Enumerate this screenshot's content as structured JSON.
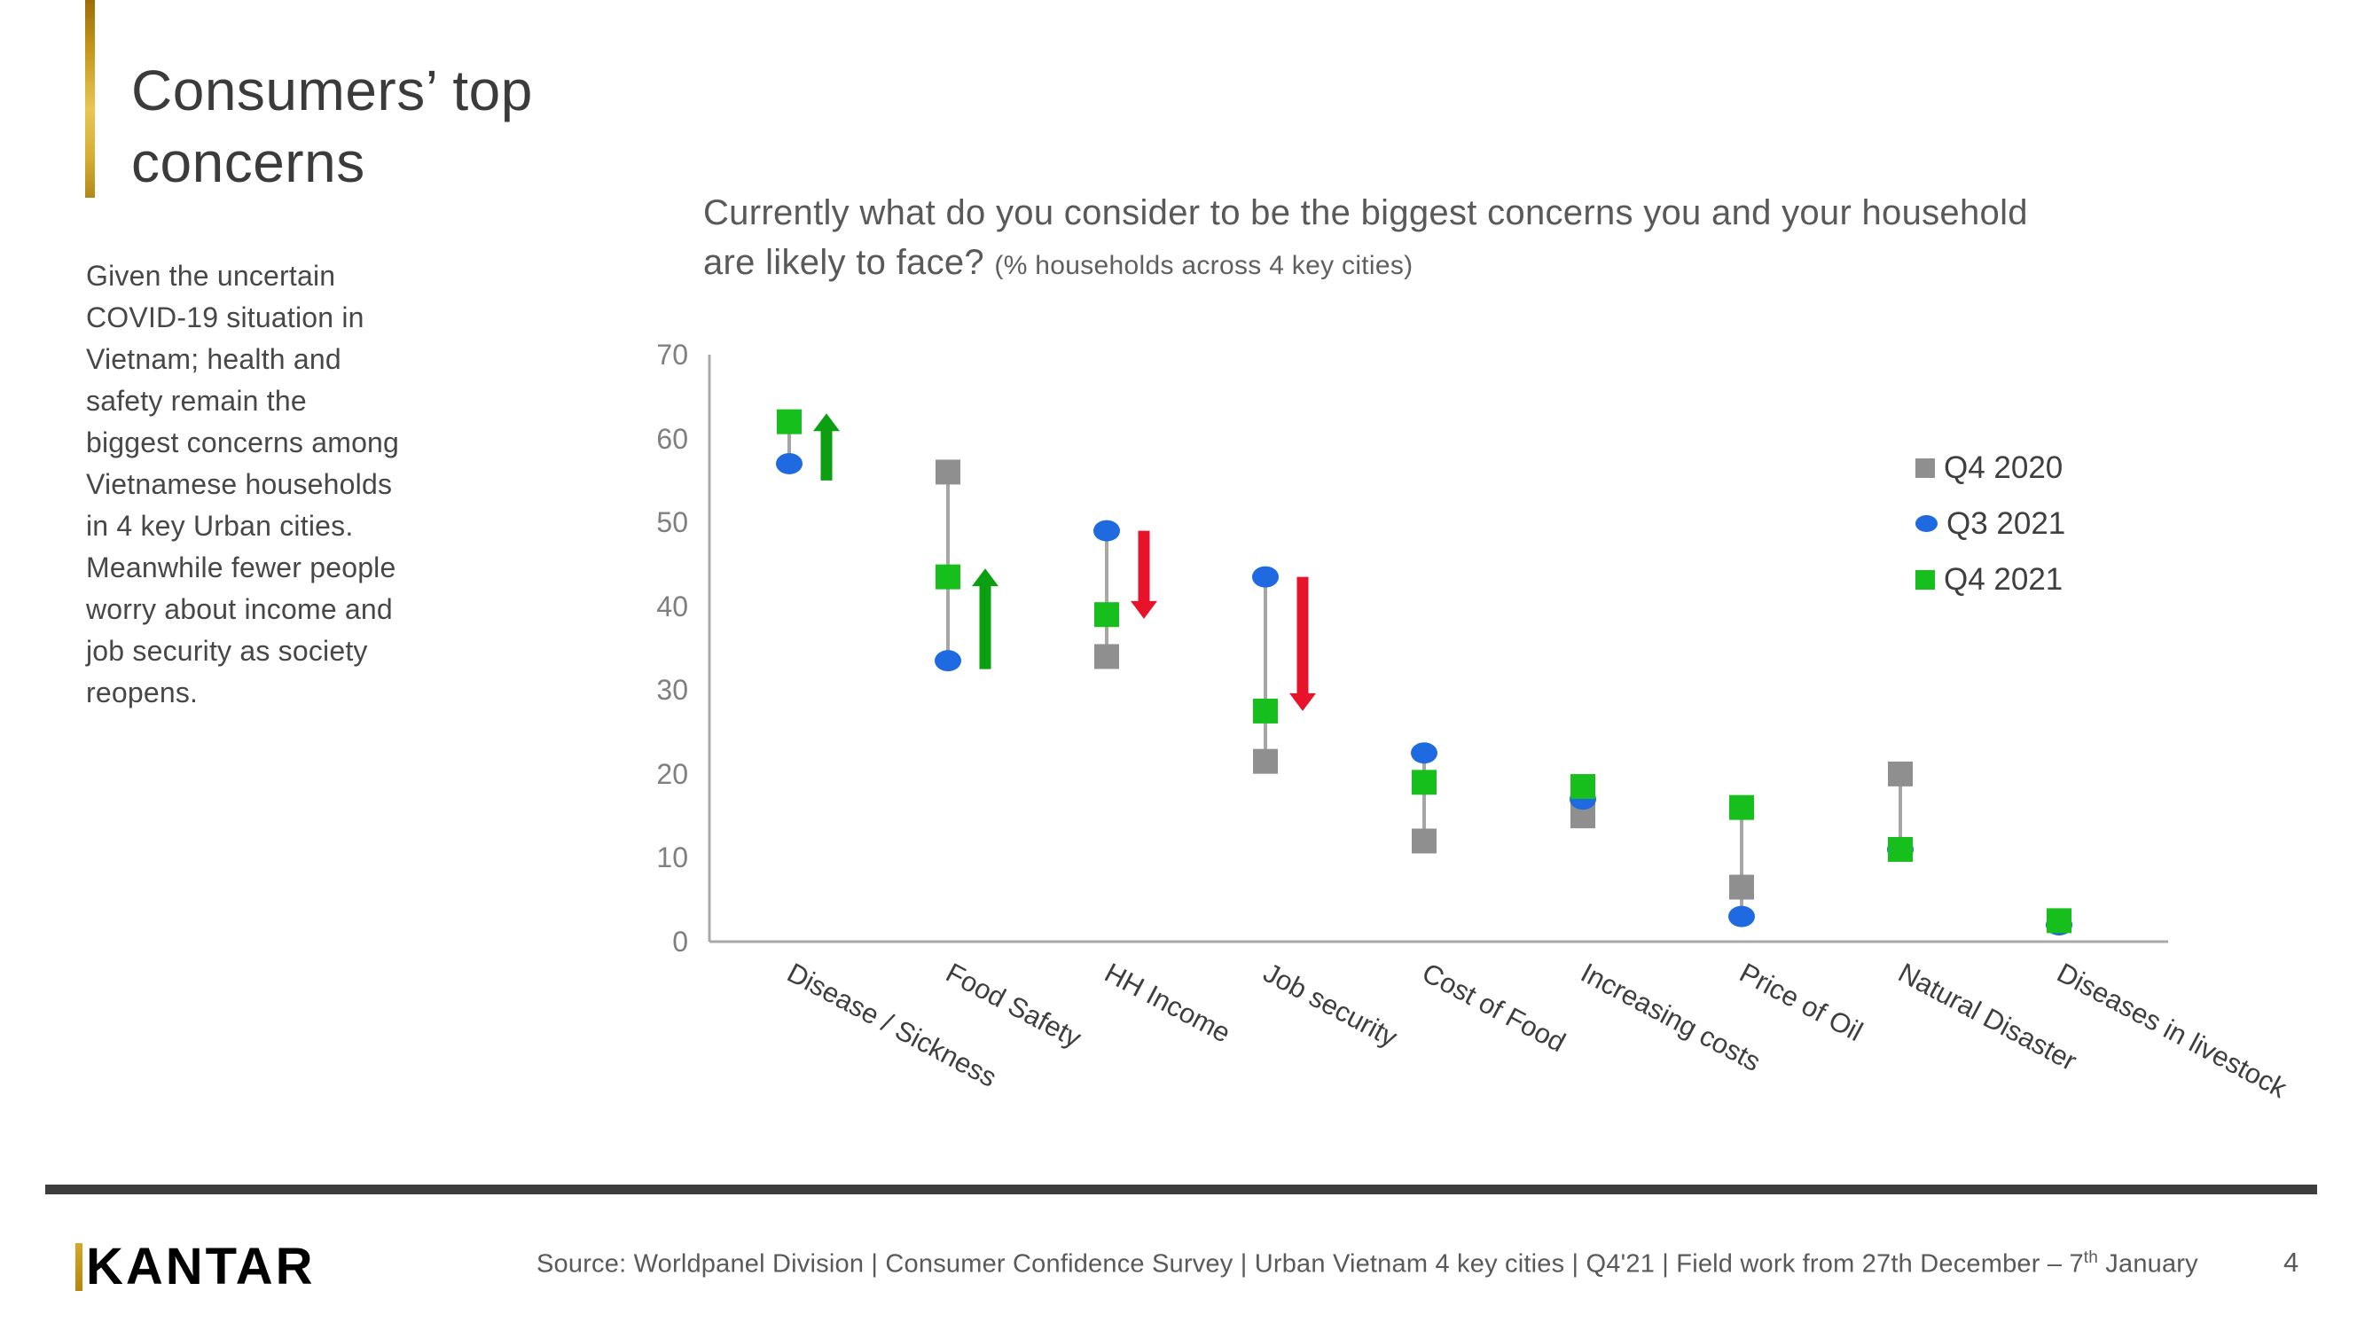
{
  "slide": {
    "title": "Consumers’ top\nconcerns",
    "body_text": "Given the uncertain\nCOVID-19 situation in\nVietnam; health and\nsafety remain the\nbiggest concerns among\nVietnamese households\nin 4 key Urban cities.\nMeanwhile fewer people\nworry about income and\njob security as society\nreopens.",
    "page_number": "4"
  },
  "chart_title": {
    "main": "Currently what do you consider to be the biggest concerns you and your household are likely to face?",
    "note": "(% households across 4 key cities)"
  },
  "footer": {
    "logo_text": "KANTAR",
    "source_prefix": "Source: Worldpanel Division | Consumer Confidence Survey | Urban Vietnam 4 key cities | Q4'21 | Field work from 27th December – 7",
    "source_sup": "th",
    "source_suffix": " January"
  },
  "colors": {
    "q4_2020_gray": "#8f8f8f",
    "q3_2021_blue": "#1f6ae0",
    "q4_2021_green": "#16bf1c",
    "arrow_green": "#0d9f12",
    "arrow_red": "#e8132b",
    "connector": "#a6a6a6",
    "axis": "#a9a9a9"
  },
  "chart_data": {
    "type": "scatter",
    "subtype": "dumbbell-dot-plot",
    "categories": [
      "Disease / Sickness",
      "Food Safety",
      "HH Income",
      "Job security",
      "Cost of Food",
      "Increasing costs",
      "Price of Oil",
      "Natural Disaster",
      "Diseases in livestock"
    ],
    "series": [
      {
        "name": "Q4 2020",
        "marker": "square",
        "color": "#8f8f8f",
        "values": [
          null,
          56,
          34,
          21.5,
          12,
          15,
          6.5,
          20,
          null
        ]
      },
      {
        "name": "Q3 2021",
        "marker": "circle",
        "color": "#1f6ae0",
        "values": [
          57,
          33.5,
          49,
          43.5,
          22.5,
          17,
          3,
          11,
          2
        ]
      },
      {
        "name": "Q4 2021",
        "marker": "square",
        "color": "#16bf1c",
        "values": [
          62,
          43.5,
          39,
          27.5,
          19,
          18.5,
          16,
          11,
          2.5
        ]
      }
    ],
    "arrows": [
      {
        "category": 0,
        "direction": "up",
        "color": "#0d9f12",
        "from": 55,
        "to": 63
      },
      {
        "category": 1,
        "direction": "up",
        "color": "#0d9f12",
        "from": 32.5,
        "to": 44.5
      },
      {
        "category": 2,
        "direction": "down",
        "color": "#e8132b",
        "from": 49,
        "to": 38.5
      },
      {
        "category": 3,
        "direction": "down",
        "color": "#e8132b",
        "from": 43.5,
        "to": 27.5
      }
    ],
    "ylim": [
      0,
      70
    ],
    "y_ticks": [
      0,
      10,
      20,
      30,
      40,
      50,
      60,
      70
    ],
    "grid": false,
    "legend_position": "right",
    "legend": [
      "Q4 2020",
      "Q3 2021",
      "Q4 2021"
    ]
  }
}
